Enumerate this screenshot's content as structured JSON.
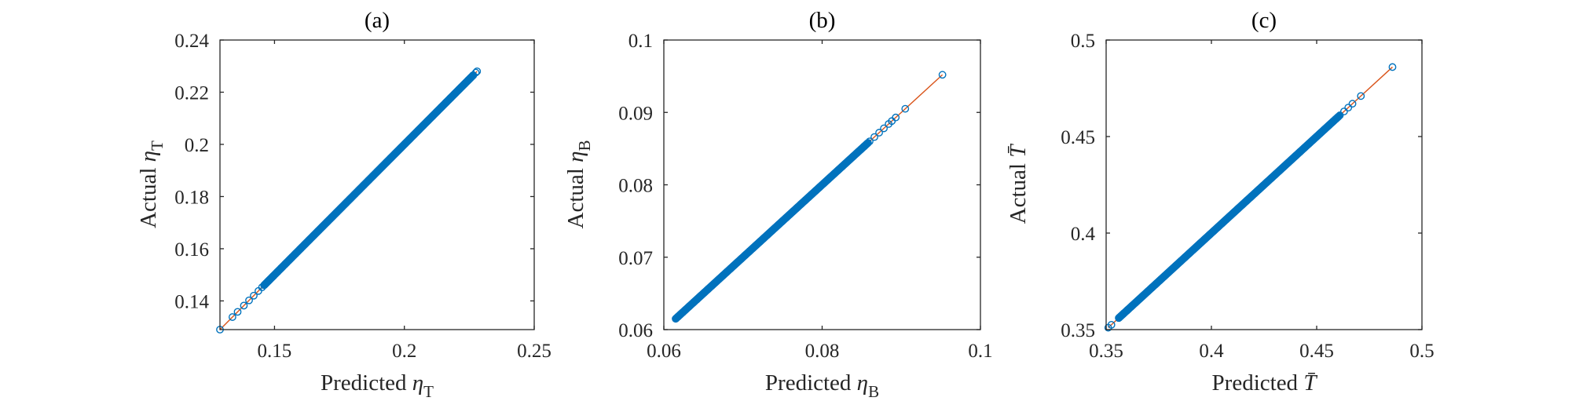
{
  "figure": {
    "colors": {
      "marker": "#0072BD",
      "line": "#D95319",
      "axis": "#262626"
    }
  },
  "chart_data": [
    {
      "type": "scatter",
      "title": "(a)",
      "xlabel": {
        "text": "Predicted ",
        "symbol": "η",
        "subscript": "T"
      },
      "ylabel": {
        "text": "Actual ",
        "symbol": "η",
        "subscript": "T"
      },
      "xlim": [
        0.129,
        0.25
      ],
      "ylim": [
        0.129,
        0.24
      ],
      "xticks": [
        0.15,
        0.2,
        0.25
      ],
      "xtick_labels": [
        "0.15",
        "0.2",
        "0.25"
      ],
      "yticks": [
        0.14,
        0.16,
        0.18,
        0.2,
        0.22,
        0.24
      ],
      "ytick_labels": [
        "0.14",
        "0.16",
        "0.18",
        "0.2",
        "0.22",
        "0.24"
      ],
      "fit_line": {
        "x": [
          0.129,
          0.228
        ],
        "y": [
          0.129,
          0.228
        ]
      },
      "sparse_points": [
        0.129,
        0.1338,
        0.1358,
        0.1382,
        0.1402,
        0.142,
        0.1438,
        0.1452,
        0.1467,
        0.148,
        0.1495,
        0.1512,
        0.1525,
        0.154,
        0.1556,
        0.1568,
        0.1582,
        0.222,
        0.2232,
        0.2245,
        0.2255,
        0.2265,
        0.2275,
        0.228
      ],
      "dense_range": [
        0.146,
        0.2265
      ],
      "grid": false,
      "legend": "none"
    },
    {
      "type": "scatter",
      "title": "(b)",
      "xlabel": {
        "text": "Predicted ",
        "symbol": "η",
        "subscript": "B"
      },
      "ylabel": {
        "text": "Actual ",
        "symbol": "η",
        "subscript": "B"
      },
      "xlim": [
        0.06,
        0.1
      ],
      "ylim": [
        0.06,
        0.1
      ],
      "xticks": [
        0.06,
        0.08,
        0.1
      ],
      "xtick_labels": [
        "0.06",
        "0.08",
        "0.1"
      ],
      "yticks": [
        0.06,
        0.07,
        0.08,
        0.09,
        0.1
      ],
      "ytick_labels": [
        "0.06",
        "0.07",
        "0.08",
        "0.09",
        "0.1"
      ],
      "fit_line": {
        "x": [
          0.0615,
          0.0952
        ],
        "y": [
          0.0615,
          0.0952
        ]
      },
      "sparse_points": [
        0.0615,
        0.0618,
        0.0621,
        0.0624,
        0.0846,
        0.0853,
        0.086,
        0.0866,
        0.0872,
        0.0878,
        0.0884,
        0.0888,
        0.0893,
        0.0905,
        0.0952
      ],
      "dense_range": [
        0.0615,
        0.0858
      ],
      "grid": false,
      "legend": "none"
    },
    {
      "type": "scatter",
      "title": "(c)",
      "xlabel": {
        "text": "Predicted ",
        "symbol": "T̄",
        "subscript": ""
      },
      "ylabel": {
        "text": "Actual ",
        "symbol": "T̄",
        "subscript": ""
      },
      "xlim": [
        0.35,
        0.5
      ],
      "ylim": [
        0.35,
        0.5
      ],
      "xticks": [
        0.35,
        0.4,
        0.45,
        0.5
      ],
      "xtick_labels": [
        "0.35",
        "0.4",
        "0.45",
        "0.5"
      ],
      "yticks": [
        0.35,
        0.4,
        0.45,
        0.5
      ],
      "ytick_labels": [
        "0.35",
        "0.4",
        "0.45",
        "0.5"
      ],
      "fit_line": {
        "x": [
          0.351,
          0.486
        ],
        "y": [
          0.351,
          0.486
        ]
      },
      "sparse_points": [
        0.351,
        0.3525,
        0.357,
        0.3585,
        0.36,
        0.455,
        0.457,
        0.459,
        0.461,
        0.463,
        0.465,
        0.467,
        0.471,
        0.486
      ],
      "dense_range": [
        0.356,
        0.4605
      ],
      "grid": false,
      "legend": "none"
    }
  ]
}
